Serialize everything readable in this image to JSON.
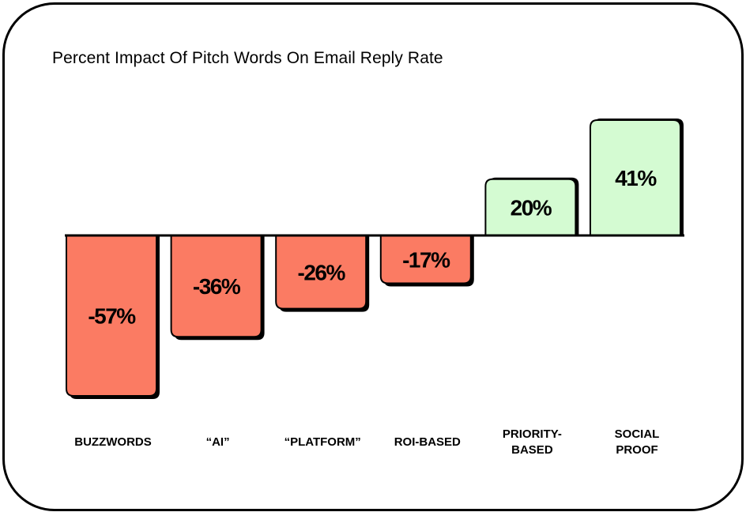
{
  "chart_data": {
    "type": "bar",
    "title": "Percent Impact Of Pitch Words On Email Reply Rate",
    "categories": [
      "BUZZWORDS",
      "“AI”",
      "“PLATFORM”",
      "ROI-BASED",
      "PRIORITY-\nBASED",
      "SOCIAL\nPROOF"
    ],
    "values": [
      -57,
      -36,
      -26,
      -17,
      20,
      41
    ],
    "data_labels": [
      "-57%",
      "-36%",
      "-26%",
      "-17%",
      "20%",
      "41%"
    ],
    "xlabel": "",
    "ylabel": "",
    "ylim": [
      -57,
      41
    ],
    "grid": false,
    "legend": "none"
  },
  "colors": {
    "negative": "#fb7b63",
    "positive": "#d4fbd2",
    "outline": "#000000",
    "background": "#ffffff"
  }
}
